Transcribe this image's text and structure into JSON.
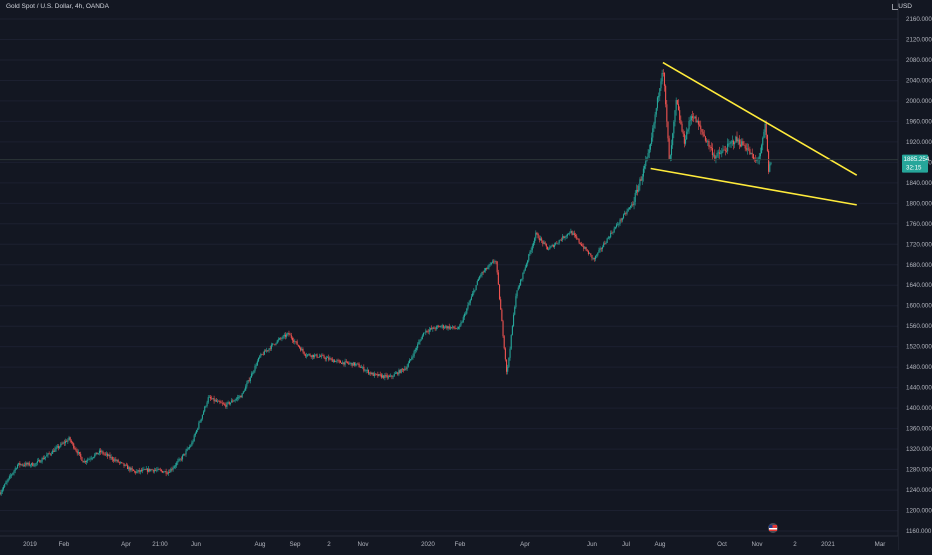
{
  "header": {
    "symbol": "Gold Spot / U.S. Dollar, 4h, OANDA",
    "currency": "USD"
  },
  "price_axis": {
    "ticks": [
      "2160.000",
      "2120.000",
      "2080.000",
      "2040.000",
      "2000.000",
      "1960.000",
      "1920.000",
      "1880.000",
      "1840.000",
      "1800.000",
      "1760.000",
      "1720.000",
      "1680.000",
      "1640.000",
      "1600.000",
      "1560.000",
      "1520.000",
      "1480.000",
      "1440.000",
      "1400.000",
      "1360.000",
      "1320.000",
      "1280.000",
      "1240.000",
      "1200.000",
      "1160.000"
    ],
    "current_price": "1885.254",
    "countdown": "32:15"
  },
  "time_axis": {
    "ticks": [
      "2019",
      "Feb",
      "Apr",
      "21:00",
      "Jun",
      "Aug",
      "Sep",
      "2",
      "Nov",
      "2020",
      "Feb",
      "Apr",
      "Jun",
      "Jul",
      "Aug",
      "Oct",
      "Nov",
      "2",
      "2021",
      "Mar"
    ]
  },
  "colors": {
    "background": "#131722",
    "up": "#26a69a",
    "down": "#ef5350",
    "trendline": "#ffeb3b",
    "axis_text": "#b2b5be",
    "price_badge": "#26a69a"
  },
  "chart_data": {
    "type": "candlestick",
    "title": "Gold Spot / U.S. Dollar, 4h, OANDA",
    "y_unit": "USD",
    "ylim": [
      1150,
      2175
    ],
    "x_range": [
      "2018-12-20",
      "2021-03-05"
    ],
    "grid": true,
    "price_path": [
      [
        "2018-12-20",
        1235
      ],
      [
        "2019-01-05",
        1290
      ],
      [
        "2019-01-20",
        1290
      ],
      [
        "2019-02-05",
        1315
      ],
      [
        "2019-02-20",
        1340
      ],
      [
        "2019-03-05",
        1295
      ],
      [
        "2019-03-20",
        1315
      ],
      [
        "2019-04-05",
        1295
      ],
      [
        "2019-04-20",
        1275
      ],
      [
        "2019-05-05",
        1280
      ],
      [
        "2019-05-20",
        1275
      ],
      [
        "2019-05-31",
        1300
      ],
      [
        "2019-06-10",
        1330
      ],
      [
        "2019-06-25",
        1420
      ],
      [
        "2019-07-10",
        1405
      ],
      [
        "2019-07-25",
        1425
      ],
      [
        "2019-08-10",
        1500
      ],
      [
        "2019-08-25",
        1530
      ],
      [
        "2019-09-05",
        1545
      ],
      [
        "2019-09-20",
        1505
      ],
      [
        "2019-10-05",
        1500
      ],
      [
        "2019-10-20",
        1490
      ],
      [
        "2019-11-05",
        1485
      ],
      [
        "2019-11-20",
        1465
      ],
      [
        "2019-12-05",
        1460
      ],
      [
        "2019-12-20",
        1480
      ],
      [
        "2020-01-05",
        1550
      ],
      [
        "2020-01-20",
        1560
      ],
      [
        "2020-02-05",
        1555
      ],
      [
        "2020-02-24",
        1660
      ],
      [
        "2020-03-09",
        1690
      ],
      [
        "2020-03-19",
        1465
      ],
      [
        "2020-03-27",
        1620
      ],
      [
        "2020-04-14",
        1740
      ],
      [
        "2020-04-25",
        1710
      ],
      [
        "2020-05-15",
        1745
      ],
      [
        "2020-06-05",
        1690
      ],
      [
        "2020-06-20",
        1740
      ],
      [
        "2020-07-10",
        1800
      ],
      [
        "2020-07-25",
        1900
      ],
      [
        "2020-08-06",
        2070
      ],
      [
        "2020-08-12",
        1875
      ],
      [
        "2020-08-18",
        2000
      ],
      [
        "2020-08-25",
        1920
      ],
      [
        "2020-09-01",
        1975
      ],
      [
        "2020-09-10",
        1940
      ],
      [
        "2020-09-22",
        1890
      ],
      [
        "2020-10-01",
        1905
      ],
      [
        "2020-10-10",
        1925
      ],
      [
        "2020-10-20",
        1910
      ],
      [
        "2020-10-28",
        1880
      ],
      [
        "2020-11-02",
        1900
      ],
      [
        "2020-11-06",
        1955
      ],
      [
        "2020-11-09",
        1860
      ],
      [
        "2020-11-11",
        1885
      ]
    ],
    "annotations": [
      {
        "type": "trendline",
        "from": [
          "2020-08-06",
          2075
        ],
        "to": [
          "2021-01-27",
          1855
        ]
      },
      {
        "type": "trendline",
        "from": [
          "2020-07-26",
          1868
        ],
        "to": [
          "2021-01-27",
          1797
        ]
      }
    ]
  }
}
